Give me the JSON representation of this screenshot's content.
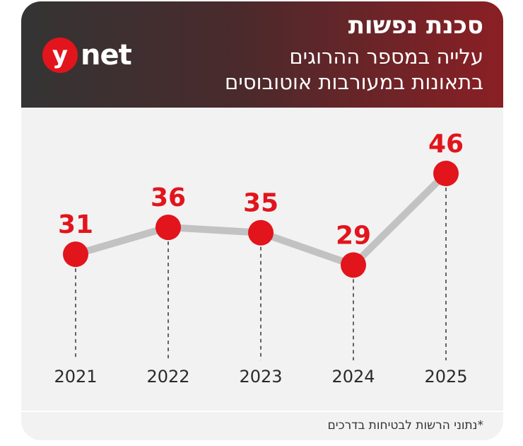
{
  "header": {
    "logo_letter": "y",
    "logo_word": "net",
    "title": "סכנת נפשות",
    "subtitle_line1": "עלייה במספר ההרוגים",
    "subtitle_line2": "בתאונות במעורבות אוטובוסים"
  },
  "footer": {
    "source": "*נתוני הרשות לבטיחות בדרכים"
  },
  "colors": {
    "accent": "#e2141c",
    "line": "#c2c2c2",
    "header_dark": "#343434",
    "header_red": "#8a1f24",
    "background": "#f2f2f2"
  },
  "chart_data": {
    "type": "line",
    "categories": [
      "2021",
      "2022",
      "2023",
      "2024",
      "2025"
    ],
    "values": [
      31,
      36,
      35,
      29,
      46
    ],
    "data_labels": [
      "31",
      "36",
      "35",
      "29",
      "46"
    ],
    "grid": false,
    "ylim": [
      20,
      50
    ]
  }
}
